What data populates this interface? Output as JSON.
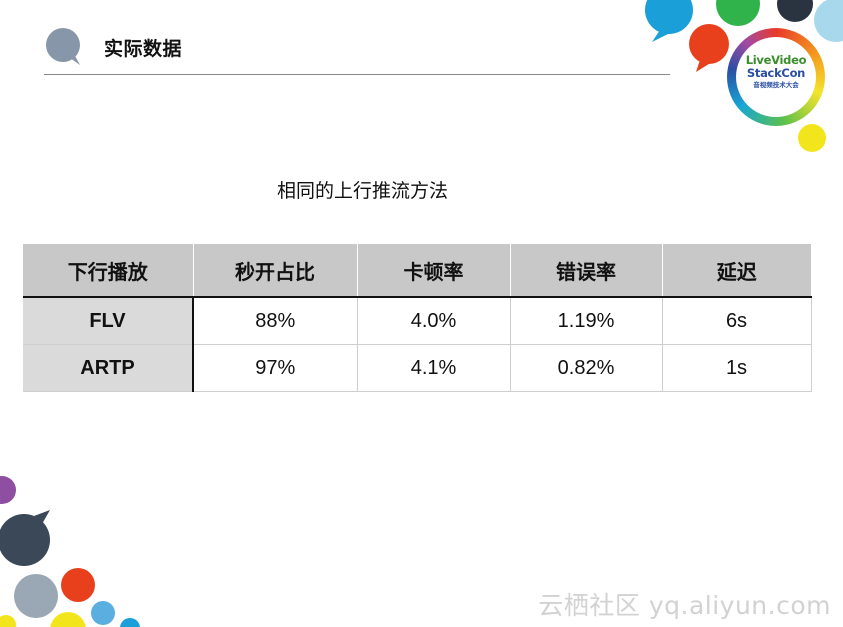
{
  "slide": {
    "title": "实际数据",
    "caption": "相同的上行推流方法"
  },
  "logo": {
    "line1": "LiveVideo",
    "line2": "StackCon",
    "line3": "音视频技术大会"
  },
  "table": {
    "headers": [
      "下行播放",
      "秒开占比",
      "卡顿率",
      "错误率",
      "延迟"
    ],
    "rows": [
      [
        "FLV",
        "88%",
        "4.0%",
        "1.19%",
        "6s"
      ],
      [
        "ARTP",
        "97%",
        "4.1%",
        "0.82%",
        "1s"
      ]
    ]
  },
  "watermark": "云栖社区 yq.aliyun.com",
  "colors": {
    "header_bubble": "#8796a8",
    "table_header_bg": "#c8c8c8",
    "row_head_bg": "#dadada",
    "watermark": "#d2d2d2"
  }
}
